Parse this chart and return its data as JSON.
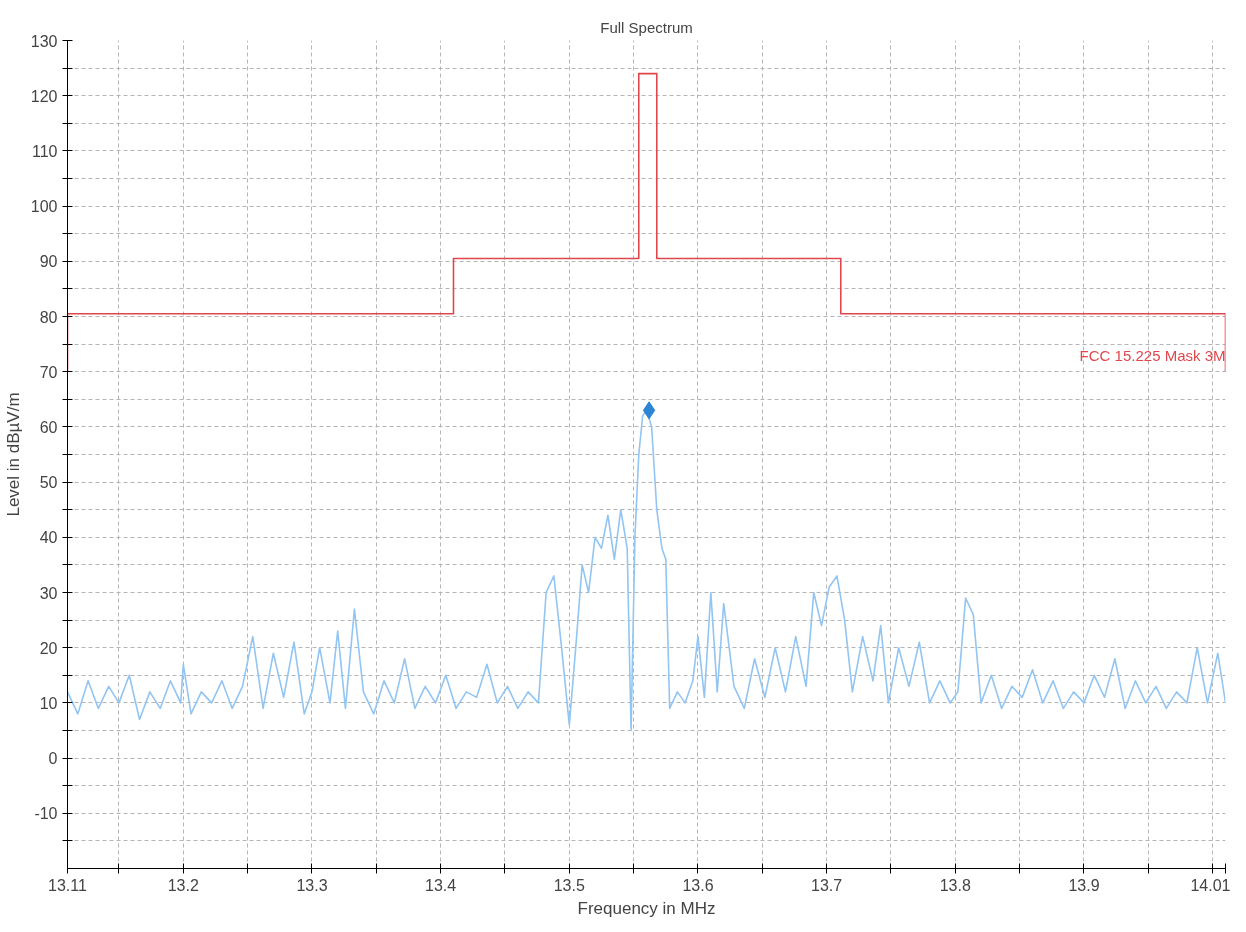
{
  "chart_data": {
    "type": "line",
    "title": "Full Spectrum",
    "xlabel": "Frequency in MHz",
    "ylabel": "Level in dBµV/m",
    "xlim": [
      13.11,
      14.01
    ],
    "ylim": [
      -20,
      130
    ],
    "xticks": [
      13.11,
      {
        "value": 13.15,
        "label": null
      },
      13.2,
      {
        "value": 13.25,
        "label": null
      },
      13.3,
      {
        "value": 13.35,
        "label": null
      },
      13.4,
      {
        "value": 13.45,
        "label": null
      },
      13.5,
      {
        "value": 13.55,
        "label": null
      },
      13.6,
      {
        "value": 13.65,
        "label": null
      },
      13.7,
      {
        "value": 13.75,
        "label": null
      },
      13.8,
      {
        "value": 13.85,
        "label": null
      },
      13.9,
      {
        "value": 13.95,
        "label": null
      },
      {
        "value": 14.0,
        "label": null
      },
      14.01
    ],
    "yticks": [
      {
        "value": -15,
        "label": null
      },
      -10,
      {
        "value": -5,
        "label": null
      },
      0,
      {
        "value": 5,
        "label": null
      },
      10,
      {
        "value": 15,
        "label": null
      },
      20,
      {
        "value": 25,
        "label": null
      },
      30,
      {
        "value": 35,
        "label": null
      },
      40,
      {
        "value": 45,
        "label": null
      },
      50,
      {
        "value": 55,
        "label": null
      },
      60,
      {
        "value": 65,
        "label": null
      },
      70,
      {
        "value": 75,
        "label": null
      },
      80,
      {
        "value": 85,
        "label": null
      },
      90,
      {
        "value": 95,
        "label": null
      },
      100,
      {
        "value": 105,
        "label": null
      },
      110,
      {
        "value": 115,
        "label": null
      },
      120,
      {
        "value": 125,
        "label": null
      },
      130
    ],
    "grid": true,
    "line_style": "solid",
    "annotations": [
      {
        "text": "FCC 15.225 Mask 3M",
        "x": 14.01,
        "y": 73
      }
    ],
    "series": [
      {
        "color": "#92c5f2",
        "x": [
          13.11,
          13.118,
          13.126,
          13.134,
          13.142,
          13.15,
          13.158,
          13.166,
          13.174,
          13.182,
          13.19,
          13.198,
          13.2,
          13.206,
          13.214,
          13.222,
          13.23,
          13.238,
          13.246,
          13.254,
          13.262,
          13.27,
          13.278,
          13.286,
          13.294,
          13.3,
          13.306,
          13.314,
          13.32,
          13.326,
          13.333,
          13.34,
          13.348,
          13.356,
          13.364,
          13.372,
          13.38,
          13.388,
          13.396,
          13.404,
          13.412,
          13.42,
          13.428,
          13.436,
          13.444,
          13.452,
          13.46,
          13.468,
          13.476,
          13.482,
          13.488,
          13.494,
          13.5,
          13.505,
          13.51,
          13.515,
          13.52,
          13.525,
          13.53,
          13.535,
          13.54,
          13.545,
          13.548,
          13.551,
          13.554,
          13.557,
          13.56,
          13.564,
          13.568,
          13.572,
          13.575,
          13.578,
          13.584,
          13.59,
          13.596,
          13.6,
          13.605,
          13.61,
          13.615,
          13.62,
          13.628,
          13.636,
          13.644,
          13.652,
          13.66,
          13.668,
          13.676,
          13.684,
          13.69,
          13.696,
          13.702,
          13.708,
          13.714,
          13.72,
          13.728,
          13.736,
          13.742,
          13.748,
          13.756,
          13.764,
          13.772,
          13.78,
          13.788,
          13.796,
          13.802,
          13.808,
          13.814,
          13.82,
          13.828,
          13.836,
          13.844,
          13.852,
          13.86,
          13.868,
          13.876,
          13.884,
          13.892,
          13.9,
          13.908,
          13.916,
          13.924,
          13.932,
          13.94,
          13.948,
          13.956,
          13.964,
          13.972,
          13.98,
          13.988,
          13.996,
          14.004,
          14.01
        ],
        "values": [
          12,
          8,
          14,
          9,
          13,
          10,
          15,
          7,
          12,
          9,
          14,
          10,
          17,
          8,
          12,
          10,
          14,
          9,
          13,
          22,
          9,
          19,
          11,
          21,
          8,
          12,
          20,
          10,
          23,
          9,
          27,
          12,
          8,
          14,
          10,
          18,
          9,
          13,
          10,
          15,
          9,
          12,
          11,
          17,
          10,
          13,
          9,
          12,
          10,
          30,
          33,
          20,
          6,
          20,
          35,
          30,
          40,
          38,
          44,
          36,
          45,
          38,
          5,
          40,
          55,
          62,
          63,
          60,
          45,
          38,
          36,
          9,
          12,
          10,
          14,
          22,
          11,
          30,
          12,
          28,
          13,
          9,
          18,
          11,
          20,
          12,
          22,
          13,
          30,
          24,
          31,
          33,
          25,
          12,
          22,
          14,
          24,
          10,
          20,
          13,
          21,
          10,
          14,
          10,
          12,
          29,
          26,
          10,
          15,
          9,
          13,
          11,
          16,
          10,
          14,
          9,
          12,
          10,
          15,
          11,
          18,
          9,
          14,
          10,
          13,
          9,
          12,
          10,
          20,
          10,
          19,
          10
        ]
      },
      {
        "type": "line",
        "color": "#e0474c",
        "x": [
          13.11,
          13.11,
          13.41,
          13.41,
          13.554,
          13.554,
          13.568,
          13.568,
          13.711,
          13.711,
          14.01,
          14.01
        ],
        "values": [
          70,
          80.5,
          80.5,
          90.5,
          90.5,
          124,
          124,
          90.5,
          90.5,
          80.5,
          80.5,
          70
        ]
      },
      {
        "type": "scatter",
        "color": "#2b84d4",
        "marker": "diamond",
        "x": [
          13.562
        ],
        "values": [
          63
        ]
      }
    ]
  }
}
